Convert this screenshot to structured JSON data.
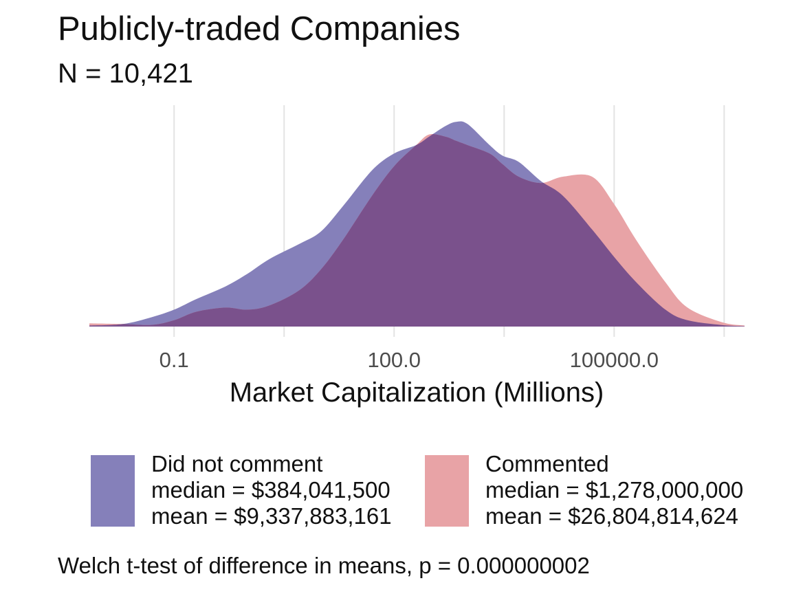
{
  "chart_data": {
    "type": "area",
    "title": "Publicly-traded Companies",
    "subtitle": "N = 10,421",
    "xlabel": "Market Capitalization (Millions)",
    "ylabel": "",
    "x_scale": "log10",
    "xlim": [
      0.007,
      6000000
    ],
    "x_ticks": [
      0.1,
      100,
      100000
    ],
    "x_tick_labels": [
      "0.1",
      "100.0",
      "100000.0"
    ],
    "grid": "vertical major and minor",
    "legend_position": "bottom",
    "series": [
      {
        "name": "Did not comment",
        "legend_lines": [
          "Did not comment",
          "median = $384,041,500",
          "mean = $9,337,883,161"
        ],
        "color": "#8580ba",
        "x": [
          0.007,
          0.02,
          0.05,
          0.1,
          0.2,
          0.5,
          1,
          2,
          5,
          10,
          20,
          50,
          100,
          200,
          300,
          500,
          700,
          1000,
          2000,
          3000,
          5000,
          10000,
          20000,
          50000,
          100000,
          200000,
          500000,
          1000000,
          3000000,
          6000000
        ],
        "y": [
          0.005,
          0.012,
          0.045,
          0.08,
          0.13,
          0.19,
          0.25,
          0.32,
          0.39,
          0.45,
          0.57,
          0.74,
          0.82,
          0.86,
          0.9,
          0.95,
          0.97,
          0.96,
          0.86,
          0.81,
          0.78,
          0.69,
          0.62,
          0.46,
          0.33,
          0.21,
          0.08,
          0.03,
          0.007,
          0.002
        ]
      },
      {
        "name": "Commented",
        "legend_lines": [
          "Commented",
          "median = $1,278,000,000",
          "mean = $26,804,814,624"
        ],
        "color": "#e8a3a6",
        "x": [
          0.007,
          0.02,
          0.05,
          0.1,
          0.2,
          0.5,
          1,
          2,
          5,
          10,
          20,
          50,
          100,
          200,
          300,
          500,
          700,
          1000,
          2000,
          3000,
          5000,
          10000,
          20000,
          50000,
          100000,
          200000,
          500000,
          1000000,
          3000000,
          6000000
        ],
        "y": [
          0.015,
          0.012,
          0.008,
          0.03,
          0.07,
          0.09,
          0.08,
          0.1,
          0.17,
          0.27,
          0.41,
          0.62,
          0.76,
          0.86,
          0.91,
          0.9,
          0.88,
          0.86,
          0.82,
          0.77,
          0.71,
          0.68,
          0.71,
          0.71,
          0.58,
          0.41,
          0.21,
          0.09,
          0.02,
          0.005
        ]
      }
    ],
    "overlap_color": "#7a518c"
  },
  "footnote": "Welch t-test of difference in means, p = 0.000000002"
}
